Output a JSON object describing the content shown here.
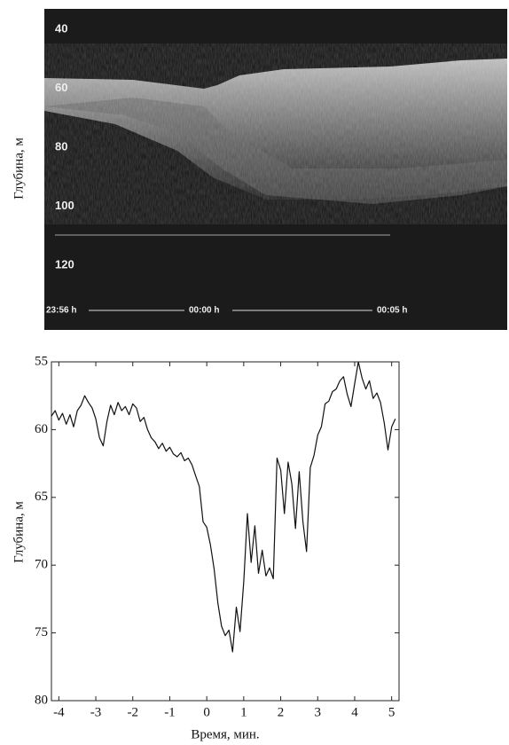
{
  "chart_data": [
    {
      "type": "echogram",
      "y_label": "Глубина, м",
      "ylim": [
        33,
        142
      ],
      "yticks": [
        40,
        60,
        80,
        100,
        120
      ],
      "categories": [
        "23:56 h",
        "00:00 h",
        "00:05 h"
      ]
    },
    {
      "type": "line",
      "y_label": "Глубина, м",
      "x_label": "Время, мин.",
      "xlim": [
        -4.2,
        5.2
      ],
      "xticks": [
        -4,
        -3,
        -2,
        -1,
        0,
        1,
        2,
        3,
        4,
        5
      ],
      "ylim": [
        55,
        80
      ],
      "yticks": [
        55,
        60,
        65,
        70,
        75,
        80
      ],
      "y_inverted": true,
      "x": [
        -4.2,
        -4.1,
        -4,
        -3.9,
        -3.8,
        -3.7,
        -3.6,
        -3.5,
        -3.4,
        -3.3,
        -3.2,
        -3.1,
        -3,
        -2.9,
        -2.8,
        -2.7,
        -2.6,
        -2.5,
        -2.4,
        -2.3,
        -2.2,
        -2.1,
        -2,
        -1.9,
        -1.8,
        -1.7,
        -1.6,
        -1.5,
        -1.4,
        -1.3,
        -1.2,
        -1.1,
        -1,
        -0.9,
        -0.8,
        -0.7,
        -0.6,
        -0.5,
        -0.4,
        -0.3,
        -0.2,
        -0.1,
        0,
        0.1,
        0.2,
        0.3,
        0.4,
        0.5,
        0.6,
        0.7,
        0.8,
        0.9,
        1,
        1.1,
        1.2,
        1.3,
        1.4,
        1.5,
        1.6,
        1.7,
        1.8,
        1.9,
        2,
        2.1,
        2.2,
        2.3,
        2.4,
        2.5,
        2.6,
        2.7,
        2.8,
        2.9,
        3,
        3.1,
        3.2,
        3.3,
        3.4,
        3.5,
        3.6,
        3.7,
        3.8,
        3.9,
        4,
        4.1,
        4.2,
        4.3,
        4.4,
        4.5,
        4.6,
        4.7,
        4.8,
        4.9,
        5,
        5.1
      ],
      "series": [
        {
          "color": "#111111",
          "values": [
            59.0,
            58.6,
            59.3,
            58.8,
            59.6,
            58.9,
            59.8,
            58.6,
            58.2,
            57.5,
            58.0,
            58.4,
            59.2,
            60.6,
            61.2,
            59.4,
            58.2,
            58.9,
            58.0,
            58.6,
            58.3,
            58.9,
            58.1,
            58.4,
            59.4,
            59.1,
            60.0,
            60.6,
            60.9,
            61.4,
            61.0,
            61.6,
            61.3,
            61.8,
            62.0,
            61.7,
            62.3,
            62.1,
            62.6,
            63.4,
            64.2,
            66.8,
            67.2,
            68.5,
            70.3,
            72.8,
            74.5,
            75.2,
            74.8,
            76.4,
            73.1,
            74.9,
            71.2,
            66.2,
            69.8,
            67.1,
            70.6,
            68.9,
            70.8,
            70.2,
            71.0,
            62.1,
            63.0,
            66.2,
            62.4,
            64.0,
            67.3,
            63.1,
            66.8,
            69.0,
            62.8,
            61.9,
            60.4,
            59.8,
            58.1,
            57.9,
            57.2,
            57.0,
            56.4,
            56.1,
            57.4,
            58.3,
            56.6,
            55.0,
            56.2,
            57.0,
            56.4,
            57.7,
            57.3,
            58.0,
            59.5,
            61.5,
            59.8,
            59.2
          ]
        }
      ]
    }
  ]
}
